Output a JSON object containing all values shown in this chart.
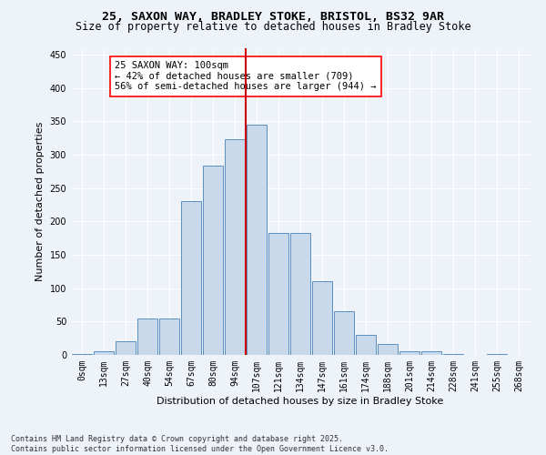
{
  "title1": "25, SAXON WAY, BRADLEY STOKE, BRISTOL, BS32 9AR",
  "title2": "Size of property relative to detached houses in Bradley Stoke",
  "xlabel": "Distribution of detached houses by size in Bradley Stoke",
  "ylabel": "Number of detached properties",
  "categories": [
    "0sqm",
    "13sqm",
    "27sqm",
    "40sqm",
    "54sqm",
    "67sqm",
    "80sqm",
    "94sqm",
    "107sqm",
    "121sqm",
    "134sqm",
    "147sqm",
    "161sqm",
    "174sqm",
    "188sqm",
    "201sqm",
    "214sqm",
    "228sqm",
    "241sqm",
    "255sqm",
    "268sqm"
  ],
  "values": [
    2,
    5,
    20,
    55,
    55,
    230,
    283,
    323,
    345,
    183,
    183,
    110,
    65,
    30,
    17,
    5,
    5,
    2,
    0,
    2,
    0
  ],
  "bar_color": "#c9d9ec",
  "bar_edge_color": "#5b8fbf",
  "vline_color": "#cc0000",
  "annotation_text_line1": "25 SAXON WAY: 100sqm",
  "annotation_text_line2": "← 42% of detached houses are smaller (709)",
  "annotation_text_line3": "56% of semi-detached houses are larger (944) →",
  "ylim": [
    0,
    460
  ],
  "yticks": [
    0,
    50,
    100,
    150,
    200,
    250,
    300,
    350,
    400,
    450
  ],
  "background_color": "#eef2f9",
  "grid_color": "#ffffff",
  "footnote": "Contains HM Land Registry data © Crown copyright and database right 2025.\nContains public sector information licensed under the Open Government Licence v3.0.",
  "title_fontsize": 9.5,
  "subtitle_fontsize": 8.5,
  "axis_label_fontsize": 8,
  "tick_fontsize": 7,
  "annotation_fontsize": 7.5
}
